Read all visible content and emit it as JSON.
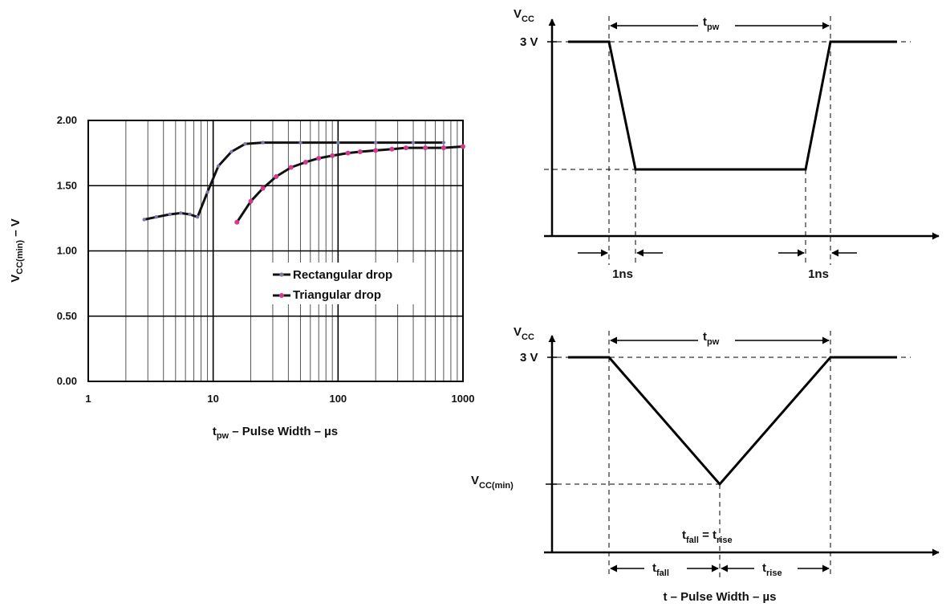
{
  "chart_data": [
    {
      "type": "line",
      "x_scale": "log",
      "xlim": [
        1,
        1000
      ],
      "ylim": [
        0,
        2.0
      ],
      "grid": true,
      "legend_position": "center-right",
      "x_ticks": [
        "1",
        "10",
        "100",
        "1000"
      ],
      "y_ticks": [
        "0.00",
        "0.50",
        "1.00",
        "1.50",
        "2.00"
      ],
      "xlabel": {
        "t": "t",
        "sub": "pw",
        "rest": " – Pulse Width – µs"
      },
      "ylabel": {
        "v": "V",
        "sub": "CC(min)",
        "rest": " – V"
      },
      "series": [
        {
          "name": "Rectangular drop",
          "color": "#111111",
          "marker_color": "#7a7aa8",
          "x": [
            2.8,
            3.5,
            4.5,
            5.5,
            6.5,
            7.5,
            9,
            11,
            14,
            18,
            25,
            50,
            100,
            200,
            400,
            700
          ],
          "y": [
            1.24,
            1.26,
            1.28,
            1.29,
            1.28,
            1.26,
            1.45,
            1.65,
            1.76,
            1.82,
            1.83,
            1.83,
            1.83,
            1.83,
            1.83,
            1.83
          ]
        },
        {
          "name": "Triangular drop",
          "color": "#111111",
          "marker_color": "#d23a8c",
          "x": [
            15.5,
            20,
            25,
            32,
            42,
            55,
            70,
            90,
            120,
            150,
            200,
            270,
            350,
            500,
            700,
            1000
          ],
          "y": [
            1.22,
            1.38,
            1.48,
            1.57,
            1.64,
            1.68,
            1.71,
            1.73,
            1.75,
            1.76,
            1.77,
            1.78,
            1.79,
            1.79,
            1.79,
            1.8
          ]
        }
      ]
    },
    {
      "type": "diagram",
      "label": "rectangular pulse waveform",
      "y_axis": {
        "v": "V",
        "sub": "CC"
      },
      "level_high": "3 V",
      "pulse_width": {
        "t": "t",
        "sub": "pw"
      },
      "edge_time": "1ns"
    },
    {
      "type": "diagram",
      "label": "triangular pulse waveform",
      "y_axis": {
        "v": "V",
        "sub": "CC"
      },
      "level_high": "3 V",
      "level_min": {
        "v": "V",
        "sub": "CC(min)"
      },
      "pulse_width": {
        "t": "t",
        "sub": "pw"
      },
      "equality": {
        "a": "t",
        "a_sub": "fall",
        "eq": " = ",
        "b": "t",
        "b_sub": "rise"
      },
      "fall": {
        "t": "t",
        "sub": "fall"
      },
      "rise": {
        "t": "t",
        "sub": "rise"
      },
      "xlabel": "t – Pulse Width – µs"
    }
  ]
}
